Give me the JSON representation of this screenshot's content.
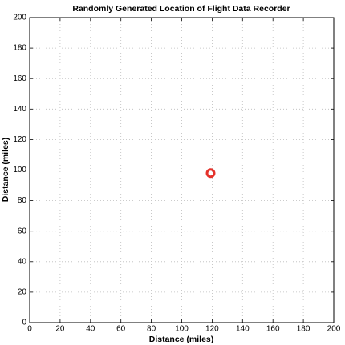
{
  "chart_data": {
    "type": "scatter",
    "title": "Randomly Generated Location of Flight Data Recorder",
    "xlabel": "Distance (miles)",
    "ylabel": "Distance (miles)",
    "series": [
      {
        "x": [
          119
        ],
        "values": [
          98
        ],
        "color": "#e5322b"
      }
    ],
    "xlim": [
      0,
      200
    ],
    "ylim": [
      0,
      200
    ],
    "xticks": [
      0,
      20,
      40,
      60,
      80,
      100,
      120,
      140,
      160,
      180,
      200
    ],
    "yticks": [
      0,
      20,
      40,
      60,
      80,
      100,
      120,
      140,
      160,
      180,
      200
    ],
    "grid": true
  }
}
